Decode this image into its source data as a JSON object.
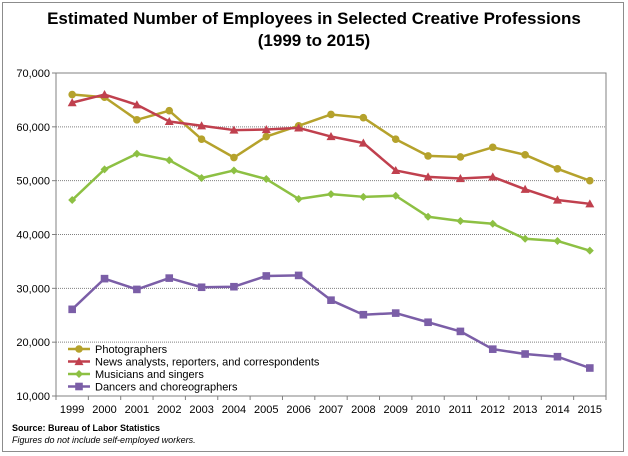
{
  "title_line1": "Estimated Number of Employees in Selected Creative Professions",
  "title_line2": "(1999 to 2015)",
  "source_text": "Source: Bureau of Labor Statistics",
  "note_text": "Figures do not include self-employed workers.",
  "chart_data": {
    "type": "line",
    "title": "Estimated Number of Employees in Selected Creative Professions (1999 to 2015)",
    "xlabel": "",
    "ylabel": "",
    "categories": [
      "1999",
      "2000",
      "2001",
      "2002",
      "2003",
      "2004",
      "2005",
      "2006",
      "2007",
      "2008",
      "2009",
      "2010",
      "2011",
      "2012",
      "2013",
      "2014",
      "2015"
    ],
    "ylim": [
      10000,
      70000
    ],
    "yticks": [
      10000,
      20000,
      30000,
      40000,
      50000,
      60000,
      70000
    ],
    "ytick_labels": [
      "10,000",
      "20,000",
      "30,000",
      "40,000",
      "50,000",
      "60,000",
      "70,000"
    ],
    "grid": "horizontal",
    "legend_position": "bottom-left inside",
    "series": [
      {
        "name": "Photographers",
        "color": "#b5a22c",
        "marker": "circle",
        "values": [
          66000,
          65500,
          61300,
          63000,
          57700,
          54300,
          58200,
          60200,
          62300,
          61700,
          57700,
          54600,
          54400,
          56200,
          54800,
          52200,
          50000
        ]
      },
      {
        "name": "News analysts, reporters, and correspondents",
        "color": "#c0404e",
        "marker": "triangle",
        "values": [
          64500,
          66000,
          64100,
          61000,
          60200,
          59400,
          59500,
          59800,
          58200,
          57000,
          51900,
          50700,
          50400,
          50700,
          48400,
          46400,
          45700
        ]
      },
      {
        "name": "Musicians and singers",
        "color": "#8dc043",
        "marker": "diamond",
        "values": [
          46400,
          52100,
          55000,
          53800,
          50500,
          51900,
          50300,
          46600,
          47500,
          47000,
          47200,
          43300,
          42500,
          42000,
          39200,
          38800,
          37000
        ]
      },
      {
        "name": "Dancers and choreographers",
        "color": "#7b5ea7",
        "marker": "square",
        "values": [
          26100,
          31800,
          29800,
          31900,
          30200,
          30300,
          32300,
          32400,
          27800,
          25100,
          25400,
          23700,
          22000,
          18700,
          17800,
          17300,
          15200
        ]
      }
    ]
  }
}
